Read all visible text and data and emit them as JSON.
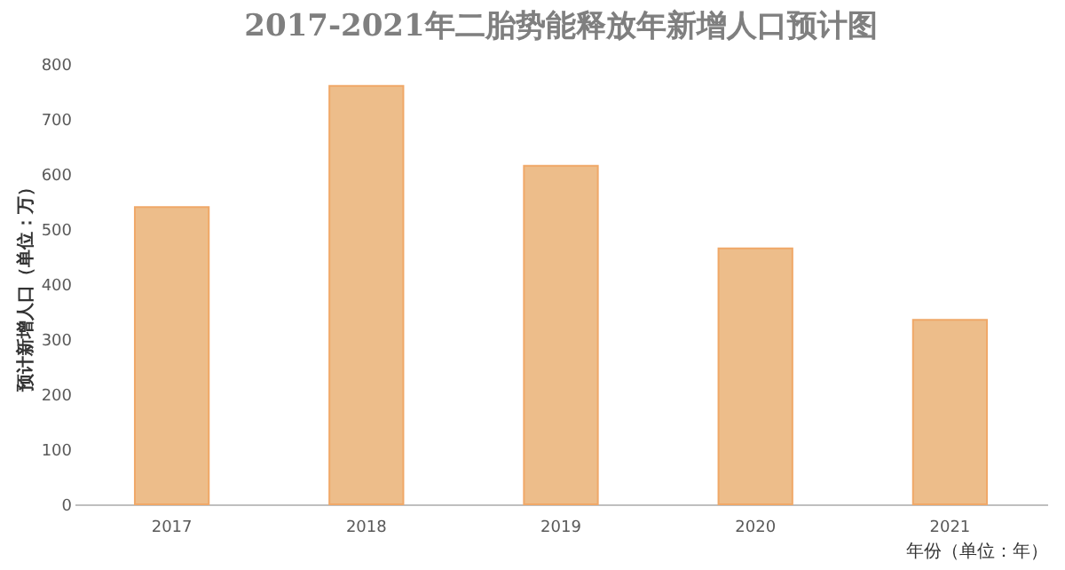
{
  "chart_data": {
    "type": "bar",
    "title": "2017-2021年二胎势能释放年新增人口预计图",
    "xlabel": "年份（单位：年）",
    "ylabel": "预计新增人口（单位：万）",
    "categories": [
      "2017",
      "2018",
      "2019",
      "2020",
      "2021"
    ],
    "values": [
      540,
      760,
      615,
      465,
      335
    ],
    "color": "#edbd8a",
    "ylim": [
      0,
      800
    ],
    "yticks": [
      0,
      100,
      200,
      300,
      400,
      500,
      600,
      700,
      800
    ],
    "grid": false
  }
}
